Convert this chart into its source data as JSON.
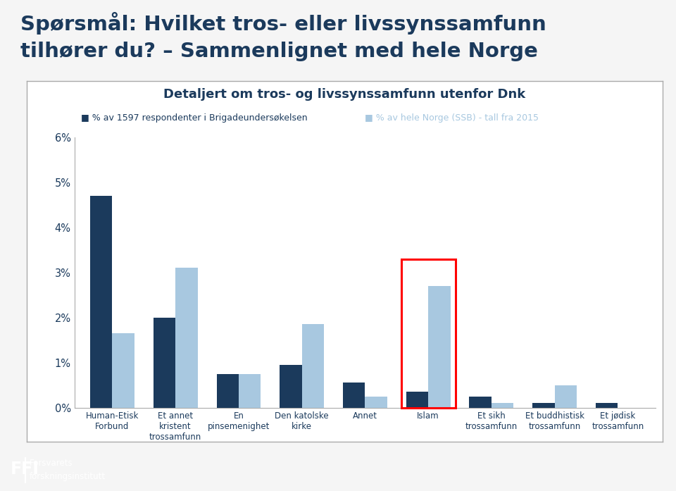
{
  "title_line1": "Spørsmål: Hvilket tros- eller livssynssamfunn",
  "title_line2": "tilhører du? – Sammenlignet med hele Norge",
  "subtitle": "Detaljert om tros- og livssynssamfunn utenfor Dnk",
  "legend1": "% av 1597 respondenter i Brigadeundersøkelsen",
  "legend2": "% av hele Norge (SSB) - tall fra 2015",
  "categories": [
    "Human-Etisk\nForbund",
    "Et annet\nkristent\ntrossamfunn",
    "En\npinsemenighet",
    "Den katolske\nkirke",
    "Annet",
    "Islam",
    "Et sikh\ntrossamfunn",
    "Et buddhistisk\ntrossamfunn",
    "Et jødisk\ntrossamfunn"
  ],
  "brigade_values": [
    4.7,
    2.0,
    0.75,
    0.95,
    0.55,
    0.35,
    0.25,
    0.1,
    0.1
  ],
  "ssb_values": [
    1.65,
    3.1,
    0.75,
    1.85,
    0.25,
    2.7,
    0.1,
    0.5,
    0.0
  ],
  "color_brigade": "#1b3a5c",
  "color_ssb": "#a8c8e0",
  "ylim_max": 6.0,
  "ytick_vals": [
    0,
    1,
    2,
    3,
    4,
    5,
    6
  ],
  "ytick_labels": [
    "0%",
    "1%",
    "2%",
    "3%",
    "4%",
    "5%",
    "6%"
  ],
  "islam_box_color": "red",
  "background_color": "#f5f5f5",
  "chart_bg": "#ffffff",
  "chart_border_color": "#aaaaaa",
  "title_color": "#1b3a5c",
  "axis_label_color": "#1b3a5c",
  "footer_bg": "#1b3a5c",
  "islam_idx": 5
}
